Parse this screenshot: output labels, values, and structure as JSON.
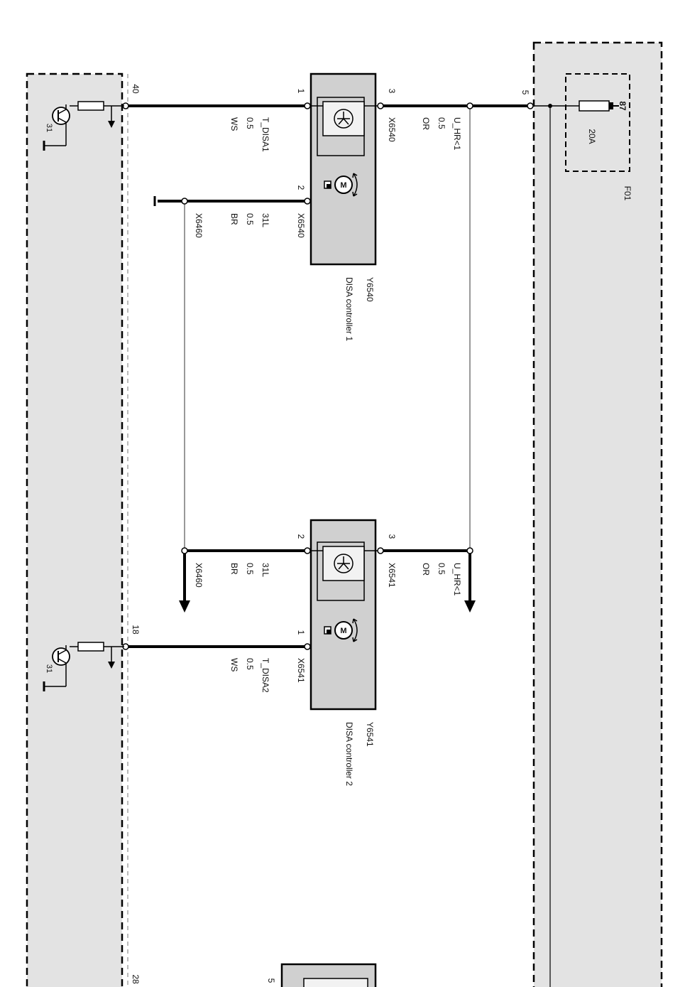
{
  "colors": {
    "panel_fill": "#e3e3e3",
    "component_fill": "#d0d0d0",
    "wire": "#000000",
    "thin_wire": "#888888"
  },
  "left_panel": {
    "pin_40": "40",
    "pin_18": "18",
    "pin_28": "28",
    "ground_a": "31",
    "ground_b": "31"
  },
  "right_panel": {
    "pin_5": "5",
    "fuse_pin": "87",
    "fuse_rating": "20A",
    "fuse_id": "F01"
  },
  "controller1": {
    "pin1": "1",
    "pin2": "2",
    "pin3": "3",
    "id": "Y6540",
    "name": "DISA controller 1",
    "conn_pin3": "X6540",
    "conn_pin2": "X6540",
    "wire_pin1": {
      "signal": "T_DISA1",
      "size": "0.5",
      "color": "WS"
    },
    "wire_pin2": {
      "signal": "31L",
      "size": "0.5",
      "color": "BR"
    },
    "wire_pin3": {
      "signal": "U_HR<1",
      "size": "0.5",
      "color": "OR"
    },
    "ground_conn": "X6460"
  },
  "controller2": {
    "pin1": "1",
    "pin2": "2",
    "pin3": "3",
    "id": "Y6541",
    "name": "DISA controller 2",
    "conn_pin3": "X6541",
    "conn_pin1": "X6541",
    "wire_pin1": {
      "signal": "T_DISA2",
      "size": "0.5",
      "color": "WS"
    },
    "wire_pin2": {
      "signal": "31L",
      "size": "0.5",
      "color": "BR"
    },
    "wire_pin3": {
      "signal": "U_HR<1",
      "size": "0.5",
      "color": "OR"
    },
    "ground_conn": "X6460"
  },
  "controller3": {
    "pin5": "5"
  },
  "symbols": {
    "motor_letter": "M"
  }
}
